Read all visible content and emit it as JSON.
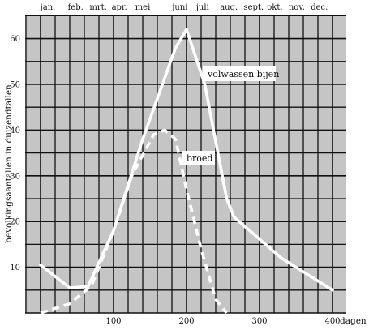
{
  "chart_data": {
    "type": "line",
    "title": "",
    "xlabel": "dagen",
    "ylabel": "bevolkingsaantallen in duizendtallen",
    "xlim": [
      0,
      400
    ],
    "ylim": [
      0,
      65
    ],
    "grid": true,
    "x_ticks": [
      100,
      200,
      300,
      400
    ],
    "x_tick_labels": [
      "100",
      "200",
      "300",
      "400"
    ],
    "y_ticks": [
      10,
      20,
      30,
      40,
      50,
      60
    ],
    "y_tick_labels": [
      "10",
      "20",
      "30",
      "40",
      "50",
      "60"
    ],
    "months": [
      {
        "label": "jan.",
        "day": 10
      },
      {
        "label": "feb.",
        "day": 48
      },
      {
        "label": "mrt.",
        "day": 79
      },
      {
        "label": "apr.",
        "day": 108
      },
      {
        "label": "mei",
        "day": 140
      },
      {
        "label": "juni",
        "day": 191
      },
      {
        "label": "juli",
        "day": 222
      },
      {
        "label": "aug.",
        "day": 258
      },
      {
        "label": "sept.",
        "day": 292
      },
      {
        "label": "okt.",
        "day": 321
      },
      {
        "label": "nov.",
        "day": 351
      },
      {
        "label": "dec.",
        "day": 382
      }
    ],
    "series": [
      {
        "name": "volwassen bijen",
        "style": "solid",
        "color": "#ffffff",
        "x": [
          0,
          40,
          65,
          100,
          140,
          185,
          200,
          225,
          255,
          265,
          330,
          400
        ],
        "y": [
          10.5,
          5.5,
          5.8,
          18,
          38,
          58,
          62,
          50,
          25,
          21,
          12,
          5
        ]
      },
      {
        "name": "broed",
        "style": "dashed",
        "color": "#ffffff",
        "x": [
          0,
          40,
          70,
          100,
          125,
          155,
          170,
          185,
          200,
          220,
          240,
          255
        ],
        "y": [
          0,
          2,
          6,
          18,
          30,
          39,
          40,
          38,
          27,
          14,
          3,
          0
        ]
      }
    ],
    "labels": {
      "adult": "volwassen bijen",
      "brood": "broed",
      "dagen": "dagen"
    }
  }
}
